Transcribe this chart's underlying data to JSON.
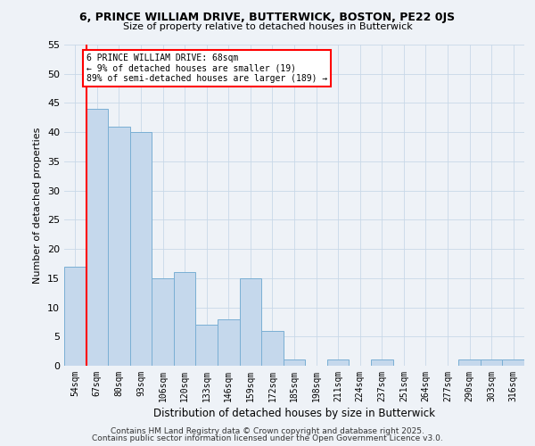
{
  "title_line1": "6, PRINCE WILLIAM DRIVE, BUTTERWICK, BOSTON, PE22 0JS",
  "title_line2": "Size of property relative to detached houses in Butterwick",
  "xlabel": "Distribution of detached houses by size in Butterwick",
  "ylabel": "Number of detached properties",
  "bin_labels": [
    "54sqm",
    "67sqm",
    "80sqm",
    "93sqm",
    "106sqm",
    "120sqm",
    "133sqm",
    "146sqm",
    "159sqm",
    "172sqm",
    "185sqm",
    "198sqm",
    "211sqm",
    "224sqm",
    "237sqm",
    "251sqm",
    "264sqm",
    "277sqm",
    "290sqm",
    "303sqm",
    "316sqm"
  ],
  "bar_heights": [
    17,
    44,
    41,
    40,
    15,
    16,
    7,
    8,
    15,
    6,
    1,
    0,
    1,
    0,
    1,
    0,
    0,
    0,
    1,
    1,
    1
  ],
  "bar_color": "#c5d8ec",
  "bar_edge_color": "#7aafd4",
  "ylim": [
    0,
    55
  ],
  "yticks": [
    0,
    5,
    10,
    15,
    20,
    25,
    30,
    35,
    40,
    45,
    50,
    55
  ],
  "annotation_text": "6 PRINCE WILLIAM DRIVE: 68sqm\n← 9% of detached houses are smaller (19)\n89% of semi-detached houses are larger (189) →",
  "annotation_box_color": "white",
  "annotation_box_edge": "red",
  "vline_color": "red",
  "footer_line1": "Contains HM Land Registry data © Crown copyright and database right 2025.",
  "footer_line2": "Contains public sector information licensed under the Open Government Licence v3.0.",
  "background_color": "#eef2f7",
  "grid_color": "#c8d8e8"
}
